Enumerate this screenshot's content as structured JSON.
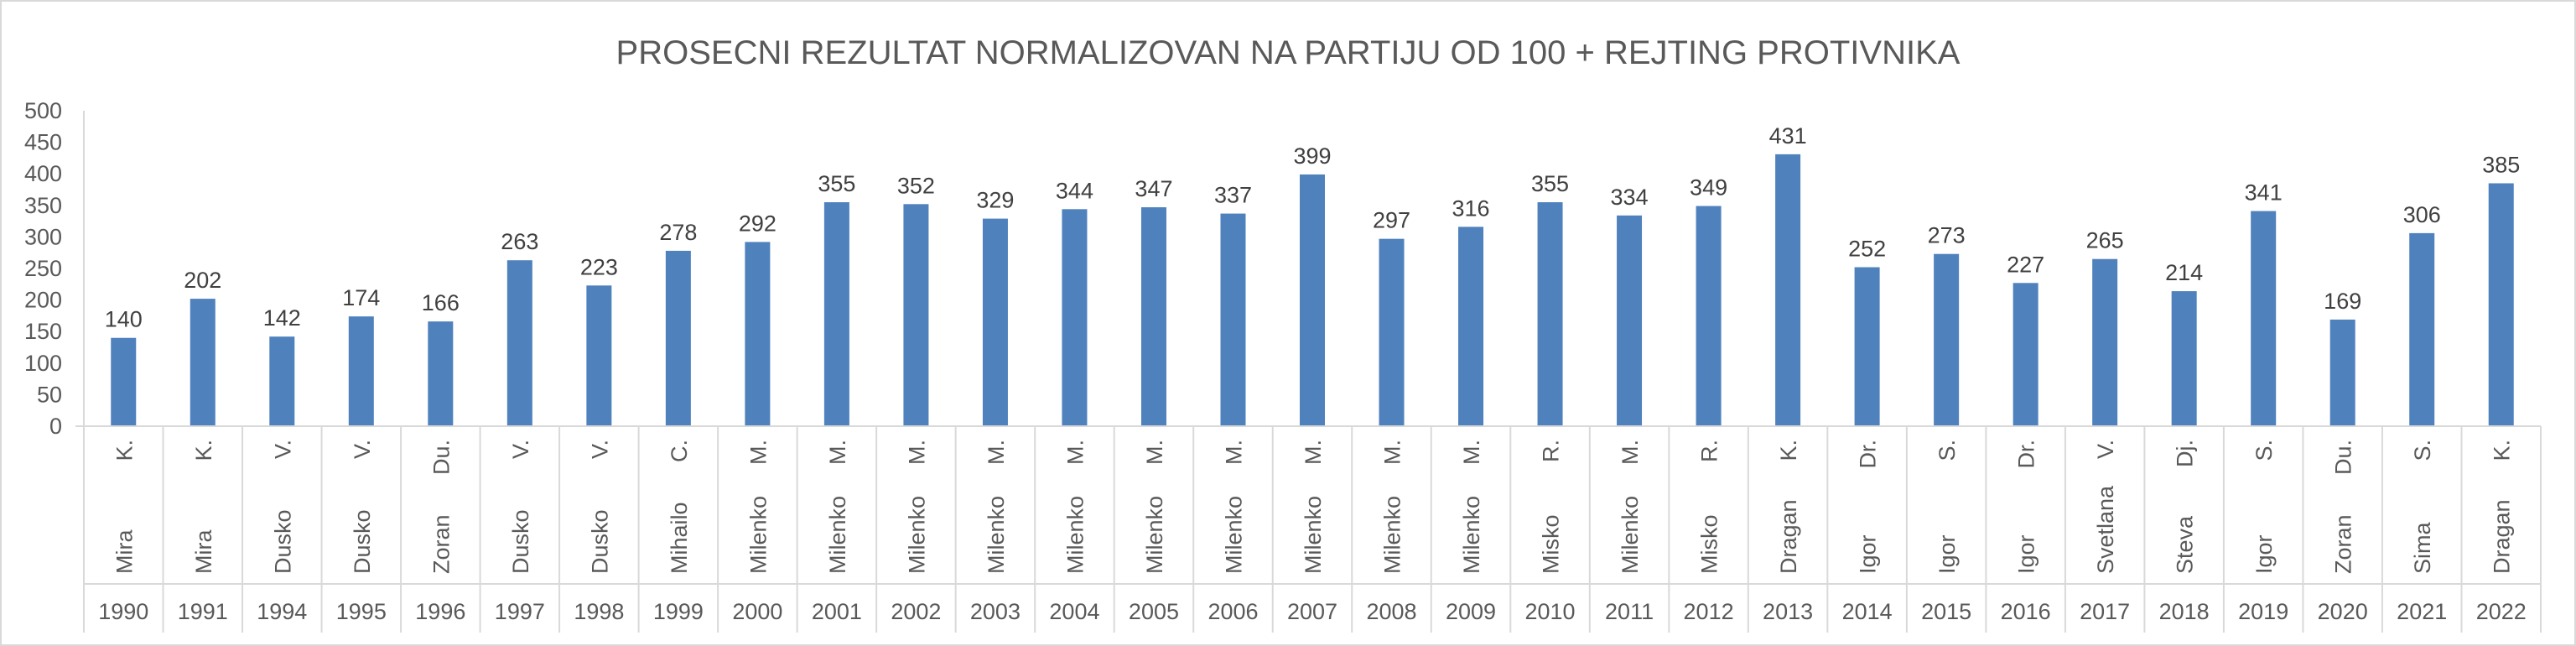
{
  "chart_data": {
    "type": "bar",
    "title": "PROSECNI REZULTAT NORMALIZOVAN NA PARTIJU OD 100 + REJTING PROTIVNIKA",
    "xlabel": "",
    "ylabel": "",
    "ylim": [
      0,
      500
    ],
    "yticks": [
      0,
      50,
      100,
      150,
      200,
      250,
      300,
      350,
      400,
      450,
      500
    ],
    "grid": false,
    "legend": "none",
    "bar_color": "#4f81bd",
    "categories": [
      {
        "name": "Mira",
        "initial": "K.",
        "year": "1990"
      },
      {
        "name": "Mira",
        "initial": "K.",
        "year": "1991"
      },
      {
        "name": "Dusko",
        "initial": "V.",
        "year": "1994"
      },
      {
        "name": "Dusko",
        "initial": "V.",
        "year": "1995"
      },
      {
        "name": "Zoran",
        "initial": "Du.",
        "year": "1996"
      },
      {
        "name": "Dusko",
        "initial": "V.",
        "year": "1997"
      },
      {
        "name": "Dusko",
        "initial": "V.",
        "year": "1998"
      },
      {
        "name": "Mihailo",
        "initial": "C.",
        "year": "1999"
      },
      {
        "name": "Milenko",
        "initial": "M.",
        "year": "2000"
      },
      {
        "name": "Milenko",
        "initial": "M.",
        "year": "2001"
      },
      {
        "name": "Milenko",
        "initial": "M.",
        "year": "2002"
      },
      {
        "name": "Milenko",
        "initial": "M.",
        "year": "2003"
      },
      {
        "name": "Milenko",
        "initial": "M.",
        "year": "2004"
      },
      {
        "name": "Milenko",
        "initial": "M.",
        "year": "2005"
      },
      {
        "name": "Milenko",
        "initial": "M.",
        "year": "2006"
      },
      {
        "name": "Milenko",
        "initial": "M.",
        "year": "2007"
      },
      {
        "name": "Milenko",
        "initial": "M.",
        "year": "2008"
      },
      {
        "name": "Milenko",
        "initial": "M.",
        "year": "2009"
      },
      {
        "name": "Misko",
        "initial": "R.",
        "year": "2010"
      },
      {
        "name": "Milenko",
        "initial": "M.",
        "year": "2011"
      },
      {
        "name": "Misko",
        "initial": "R.",
        "year": "2012"
      },
      {
        "name": "Dragan",
        "initial": "K.",
        "year": "2013"
      },
      {
        "name": "Igor",
        "initial": "Dr.",
        "year": "2014"
      },
      {
        "name": "Igor",
        "initial": "S.",
        "year": "2015"
      },
      {
        "name": "Igor",
        "initial": "Dr.",
        "year": "2016"
      },
      {
        "name": "Svetlana",
        "initial": "V.",
        "year": "2017"
      },
      {
        "name": "Steva",
        "initial": "Dj.",
        "year": "2018"
      },
      {
        "name": "Igor",
        "initial": "S.",
        "year": "2019"
      },
      {
        "name": "Zoran",
        "initial": "Du.",
        "year": "2020"
      },
      {
        "name": "Sima",
        "initial": "S.",
        "year": "2021"
      },
      {
        "name": "Dragan",
        "initial": "K.",
        "year": "2022"
      }
    ],
    "values": [
      140,
      202,
      142,
      174,
      166,
      263,
      223,
      278,
      292,
      355,
      352,
      329,
      344,
      347,
      337,
      399,
      297,
      316,
      355,
      334,
      349,
      431,
      252,
      273,
      227,
      265,
      214,
      341,
      169,
      306,
      385
    ]
  }
}
